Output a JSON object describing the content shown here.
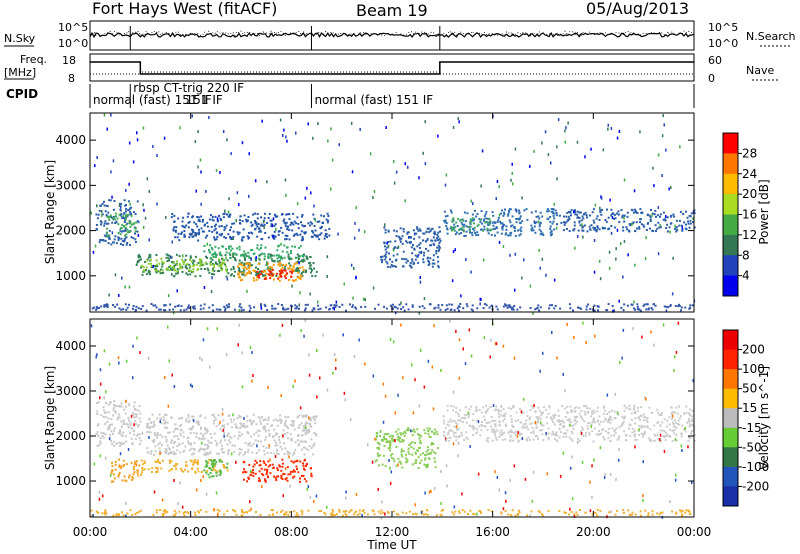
{
  "header": {
    "station": "Fort Hays West (fitACF)",
    "beam": "Beam 19",
    "date": "05/Aug/2013"
  },
  "strip_labels": {
    "nsky": "N.Sky",
    "freq_line1": "Freq.",
    "freq_line2": "[MHz]",
    "cpid": "CPID",
    "nsearch": "N.Search",
    "nave": "Nave",
    "nsky_ticks": [
      "10^5",
      "10^0"
    ],
    "nsearch_ticks": [
      "10^5",
      "10^0"
    ],
    "freq_ticks": [
      "18",
      "8"
    ],
    "nave_ticks": [
      "60",
      "0"
    ]
  },
  "cpid_modes": [
    {
      "label": "normal (fast) 151 IF",
      "start_h": 0,
      "end_h": 1.6
    },
    {
      "label": "rbsp CT-trig 220 IF",
      "start_h": 1.6,
      "end_h": 8.8
    },
    {
      "label": "normal (fast) 151 IF",
      "start_h": 8.8,
      "end_h": 24
    }
  ],
  "cpid_sublabel": "151 IF",
  "chart_data": [
    {
      "type": "heatmap",
      "name": "power",
      "ylabel": "Slant Range [km]",
      "xlabel": "",
      "xlim": [
        0,
        24
      ],
      "ylim": [
        200,
        4600
      ],
      "y_ticks": [
        1000,
        2000,
        3000,
        4000
      ],
      "colorbar": {
        "label": "Power [dB]",
        "ticks": [
          4,
          8,
          12,
          16,
          20,
          24,
          28
        ],
        "range": [
          0,
          32
        ],
        "colors": [
          "#0000ee",
          "#2244bb",
          "#337755",
          "#44aa44",
          "#aadd22",
          "#ffbb00",
          "#ff7700",
          "#ff0000"
        ]
      },
      "echo_bands": [
        {
          "t0": 0.2,
          "t1": 1.9,
          "r0": 1700,
          "r1": 2700,
          "color": "#2b5fa8"
        },
        {
          "t0": 0.6,
          "t1": 1.8,
          "r0": 1900,
          "r1": 2400,
          "color": "#44aa55"
        },
        {
          "t0": 1.8,
          "t1": 9.0,
          "r0": 1000,
          "r1": 1500,
          "color": "#2f7f55"
        },
        {
          "t0": 2.0,
          "t1": 5.5,
          "r0": 1100,
          "r1": 1400,
          "color": "#88cc33"
        },
        {
          "t0": 5.8,
          "t1": 8.5,
          "r0": 900,
          "r1": 1300,
          "color": "#ff9900"
        },
        {
          "t0": 6.5,
          "t1": 8.0,
          "r0": 950,
          "r1": 1150,
          "color": "#ee2200"
        },
        {
          "t0": 3.2,
          "t1": 9.5,
          "r0": 1800,
          "r1": 2400,
          "color": "#2255aa"
        },
        {
          "t0": 4.5,
          "t1": 8.5,
          "r0": 1400,
          "r1": 1700,
          "color": "#33aa66"
        },
        {
          "t0": 11.5,
          "t1": 13.9,
          "r0": 1200,
          "r1": 2100,
          "color": "#2b5fa8"
        },
        {
          "t0": 14.0,
          "t1": 18.5,
          "r0": 1900,
          "r1": 2500,
          "color": "#2f6fb0"
        },
        {
          "t0": 14.3,
          "t1": 16.0,
          "r0": 2000,
          "r1": 2300,
          "color": "#44aa66"
        },
        {
          "t0": 18.5,
          "t1": 24,
          "r0": 2000,
          "r1": 2500,
          "color": "#2b5fa8"
        },
        {
          "t0": 0,
          "t1": 24,
          "r0": 250,
          "r1": 400,
          "color": "#3355aa"
        }
      ]
    },
    {
      "type": "heatmap",
      "name": "velocity",
      "ylabel": "Slant Range [km]",
      "xlabel": "Time UT",
      "xlim": [
        0,
        24
      ],
      "ylim": [
        200,
        4600
      ],
      "x_ticks": [
        "00:00",
        "04:00",
        "08:00",
        "12:00",
        "16:00",
        "20:00",
        "00:00"
      ],
      "y_ticks": [
        1000,
        2000,
        3000,
        4000
      ],
      "colorbar": {
        "label": "Velocity [m s^-1]",
        "ticks": [
          "200",
          "100",
          "50",
          "15",
          "-15",
          "-50",
          "-100",
          "-200"
        ],
        "colors": [
          "#1a2ea8",
          "#2255bb",
          "#337744",
          "#66cc33",
          "#bbbbbb",
          "#ffbb00",
          "#ff7700",
          "#ff2200",
          "#ee0000"
        ]
      },
      "echo_bands": [
        {
          "t0": 0.2,
          "t1": 2.0,
          "r0": 1800,
          "r1": 2800,
          "color": "#c8c8c8"
        },
        {
          "t0": 0.8,
          "t1": 2.0,
          "r0": 1000,
          "r1": 1500,
          "color": "#f0a020"
        },
        {
          "t0": 2.0,
          "t1": 5.5,
          "r0": 1200,
          "r1": 1500,
          "color": "#f0b030"
        },
        {
          "t0": 2.2,
          "t1": 9.0,
          "r0": 1600,
          "r1": 2500,
          "color": "#c8c8c8"
        },
        {
          "t0": 6.0,
          "t1": 8.8,
          "r0": 1000,
          "r1": 1500,
          "color": "#ff2a00"
        },
        {
          "t0": 4.5,
          "t1": 5.5,
          "r0": 1100,
          "r1": 1500,
          "color": "#55bb44"
        },
        {
          "t0": 11.3,
          "t1": 13.8,
          "r0": 1300,
          "r1": 2200,
          "color": "#88cc55"
        },
        {
          "t0": 14.0,
          "t1": 24,
          "r0": 1900,
          "r1": 2700,
          "color": "#cccccc"
        },
        {
          "t0": 0,
          "t1": 24,
          "r0": 250,
          "r1": 380,
          "color": "#f0b030"
        }
      ]
    }
  ]
}
